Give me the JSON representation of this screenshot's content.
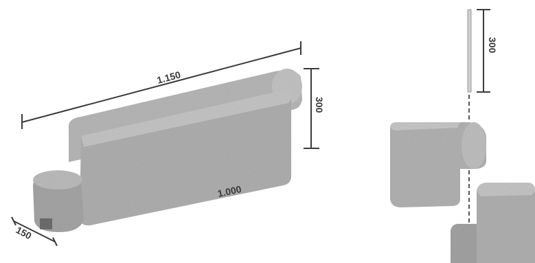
{
  "dimensions": {
    "overall_length": "1.150",
    "seat_length": "1.000",
    "height_left": "300",
    "height_right": "300",
    "depth": "150"
  },
  "colors": {
    "block_light": "#bdbdbd",
    "block_mid": "#a9a9a9",
    "block_dark": "#8e8e8e",
    "line": "#3a3a3a",
    "background": "#ffffff"
  }
}
